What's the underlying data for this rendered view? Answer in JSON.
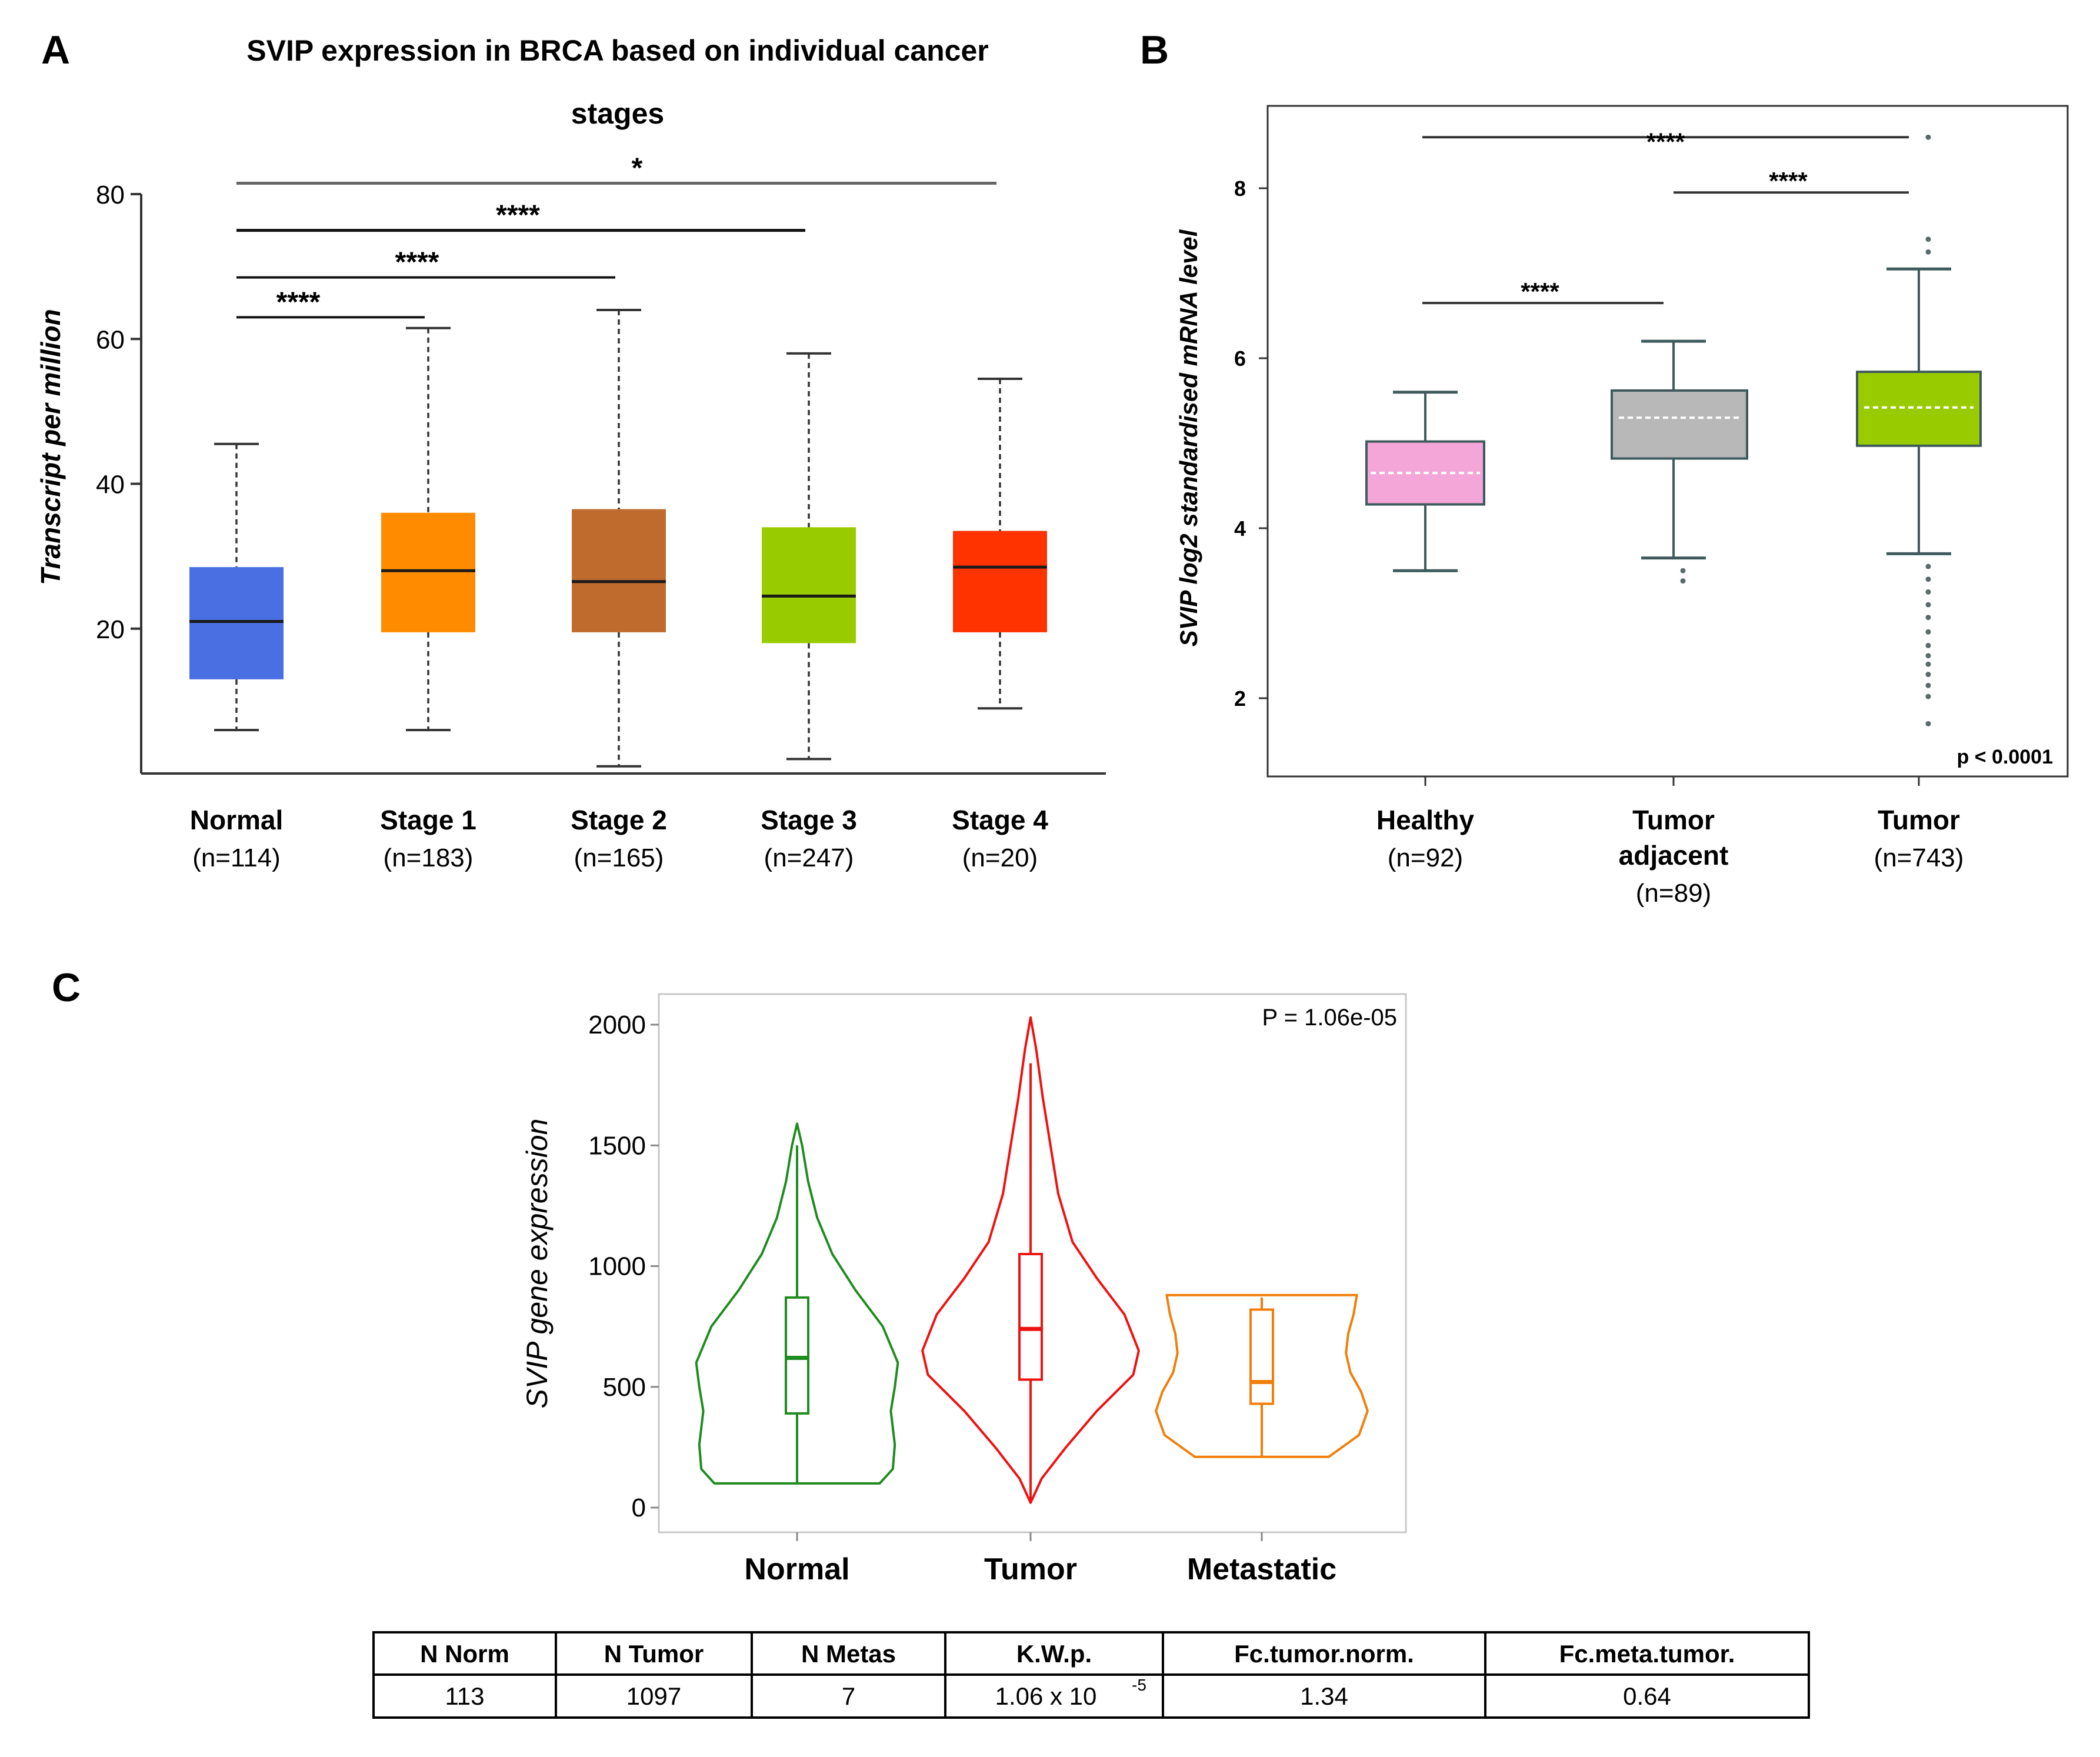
{
  "panels": {
    "A": "A",
    "B": "B",
    "C": "C"
  },
  "chart_data": [
    {
      "type": "boxplot",
      "panel": "A",
      "title_line1": "SVIP expression in BRCA based on individual cancer",
      "title_line2": "stages",
      "ylabel": "Transcript per million",
      "ylim": [
        0,
        80
      ],
      "yticks": [
        "20",
        "40",
        "60",
        "80"
      ],
      "categories": [
        "Normal",
        "Stage 1",
        "Stage 2",
        "Stage 3",
        "Stage 4"
      ],
      "counts": [
        "(n=114)",
        "(n=183)",
        "(n=165)",
        "(n=247)",
        "(n=20)"
      ],
      "colors": [
        "#4a6fe3",
        "#ff8c00",
        "#bf6b2e",
        "#99cc00",
        "#ff3300"
      ],
      "boxes": [
        {
          "min": 6,
          "q1": 13,
          "median": 21,
          "q3": 28.5,
          "max": 45.5
        },
        {
          "min": 6,
          "q1": 19.5,
          "median": 28,
          "q3": 36,
          "max": 61.5
        },
        {
          "min": 1,
          "q1": 19.5,
          "median": 26.5,
          "q3": 36.5,
          "max": 64
        },
        {
          "min": 2,
          "q1": 18,
          "median": 24.5,
          "q3": 34,
          "max": 58
        },
        {
          "min": 9,
          "q1": 19.5,
          "median": 28.5,
          "q3": 33.5,
          "max": 54.5
        }
      ],
      "significance": [
        {
          "from": 0,
          "to": 1,
          "label": "****",
          "level": 63
        },
        {
          "from": 0,
          "to": 2,
          "label": "****",
          "level": 68.5
        },
        {
          "from": 0,
          "to": 3,
          "label": "****",
          "level": 75
        },
        {
          "from": 0,
          "to": 4,
          "label": "*",
          "level": 81.5
        }
      ]
    },
    {
      "type": "boxplot",
      "panel": "B",
      "ylabel": "SVIP log2 standardised mRNA level",
      "ylim": [
        1,
        8.9
      ],
      "yticks": [
        "2",
        "4",
        "6",
        "8"
      ],
      "categories": [
        "Healthy",
        "Tumor adjacent",
        "Tumor"
      ],
      "category_lines": [
        [
          "Healthy"
        ],
        [
          "Tumor",
          "adjacent"
        ],
        [
          "Tumor"
        ]
      ],
      "counts": [
        "(n=92)",
        "(n=89)",
        "(n=743)"
      ],
      "colors": [
        "#f4a6d8",
        "#b8b8b8",
        "#99cc00"
      ],
      "boxes": [
        {
          "min": 3.5,
          "q1": 4.28,
          "median": 4.65,
          "q3": 5.02,
          "max": 5.6,
          "outliers": []
        },
        {
          "min": 3.65,
          "q1": 4.82,
          "median": 5.3,
          "q3": 5.62,
          "max": 6.2,
          "outliers": [
            3.5,
            3.38
          ]
        },
        {
          "min": 3.7,
          "q1": 4.97,
          "median": 5.42,
          "q3": 5.84,
          "max": 7.05,
          "outliers": [
            8.6,
            7.4,
            7.25,
            3.55,
            3.4,
            3.25,
            3.1,
            2.95,
            2.78,
            2.62,
            2.5,
            2.4,
            2.28,
            2.15,
            2.02,
            1.7
          ]
        }
      ],
      "significance": [
        {
          "from": 0,
          "to": 2,
          "label": "****",
          "level": 8.6
        },
        {
          "from": 1,
          "to": 2,
          "label": "****",
          "level": 7.95
        },
        {
          "from": 0,
          "to": 1,
          "label": "****",
          "level": 6.65
        }
      ],
      "pvalue": "p < 0.0001"
    },
    {
      "type": "violin",
      "panel": "C",
      "ylabel": "SVIP gene expression",
      "ylim": [
        -80,
        2110
      ],
      "yticks": [
        "0",
        "500",
        "1000",
        "1500",
        "2000"
      ],
      "categories": [
        "Normal",
        "Tumor",
        "Metastatic"
      ],
      "colors": [
        "#1f8c1f",
        "#ee1111",
        "#f07f0a"
      ],
      "pvalue": "P = 1.06e-05",
      "violins": [
        {
          "min": 100,
          "max": 1590,
          "half_width": 0.42,
          "shape": [
            [
              100,
              0.82
            ],
            [
              160,
              0.95
            ],
            [
              260,
              0.97
            ],
            [
              400,
              0.93
            ],
            [
              500,
              0.97
            ],
            [
              600,
              1.0
            ],
            [
              750,
              0.85
            ],
            [
              900,
              0.58
            ],
            [
              1050,
              0.35
            ],
            [
              1200,
              0.2
            ],
            [
              1350,
              0.11
            ],
            [
              1500,
              0.05
            ],
            [
              1590,
              0.0
            ]
          ],
          "box": {
            "q1": 390,
            "median": 620,
            "q3": 870,
            "whisker_low": 100,
            "whisker_high": 1500
          }
        },
        {
          "min": 20,
          "max": 2030,
          "half_width": 0.46,
          "shape": [
            [
              20,
              0.0
            ],
            [
              120,
              0.1
            ],
            [
              250,
              0.32
            ],
            [
              400,
              0.6
            ],
            [
              550,
              0.93
            ],
            [
              650,
              0.98
            ],
            [
              800,
              0.85
            ],
            [
              950,
              0.6
            ],
            [
              1100,
              0.38
            ],
            [
              1300,
              0.25
            ],
            [
              1500,
              0.18
            ],
            [
              1700,
              0.11
            ],
            [
              1900,
              0.05
            ],
            [
              2030,
              0.0
            ]
          ],
          "box": {
            "q1": 530,
            "median": 740,
            "q3": 1050,
            "whisker_low": 20,
            "whisker_high": 1840
          }
        },
        {
          "min": 210,
          "max": 880,
          "half_width": 0.45,
          "shape": [
            [
              210,
              0.62
            ],
            [
              300,
              0.9
            ],
            [
              400,
              0.98
            ],
            [
              480,
              0.92
            ],
            [
              560,
              0.82
            ],
            [
              640,
              0.78
            ],
            [
              720,
              0.8
            ],
            [
              800,
              0.85
            ],
            [
              880,
              0.88
            ]
          ],
          "box": {
            "q1": 430,
            "median": 520,
            "q3": 820,
            "whisker_low": 210,
            "whisker_high": 870
          }
        }
      ]
    }
  ],
  "table": {
    "headers": [
      "N Norm",
      "N Tumor",
      "N Metas",
      "K.W.p.",
      "Fc.tumor.norm.",
      "Fc.meta.tumor."
    ],
    "values": [
      "113",
      "1097",
      "7",
      "1.06 x 10",
      "1.34",
      "0.64"
    ],
    "kwp_exponent": "-5"
  }
}
